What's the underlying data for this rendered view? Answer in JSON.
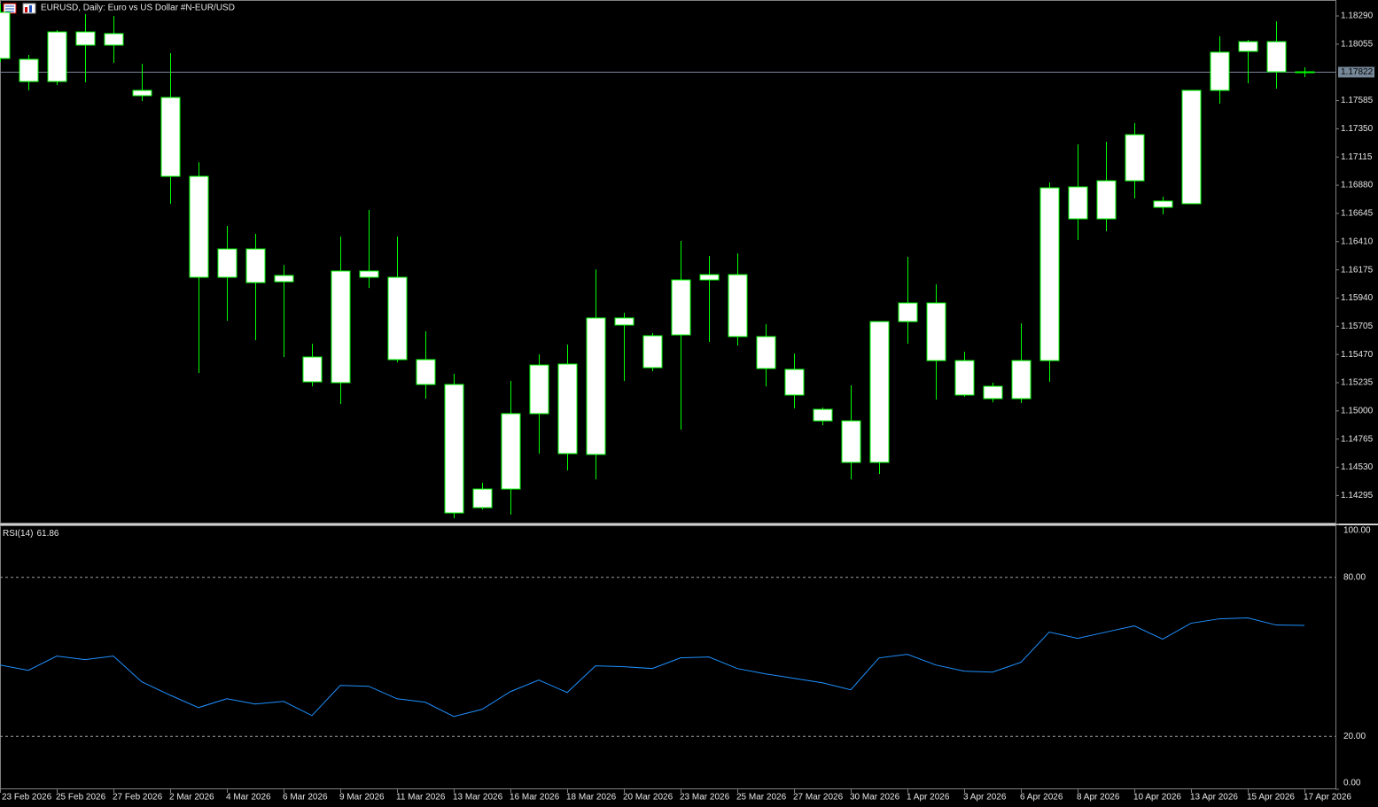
{
  "chart_data": [
    {
      "type": "candlestick",
      "title": "EURUSD, Daily:  Euro vs US Dollar #N-EUR/USD",
      "categories": [
        "23 Feb 2026",
        null,
        "25 Feb 2026",
        null,
        "27 Feb 2026",
        null,
        "2 Mar 2026",
        null,
        "4 Mar 2026",
        null,
        "6 Mar 2026",
        null,
        "9 Mar 2026",
        null,
        "11 Mar 2026",
        null,
        "13 Mar 2026",
        null,
        "16 Mar 2026",
        null,
        "18 Mar 2026",
        null,
        "20 Mar 2026",
        null,
        "23 Mar 2026",
        null,
        "25 Mar 2026",
        null,
        "27 Mar 2026",
        null,
        "30 Mar 2026",
        null,
        "1 Apr 2026",
        null,
        "3 Apr 2026",
        null,
        "6 Apr 2026",
        null,
        "8 Apr 2026",
        null,
        "10 Apr 2026",
        null,
        "13 Apr 2026",
        null,
        "15 Apr 2026",
        null,
        "17 Apr 2026"
      ],
      "open": [
        1.1832,
        1.17929,
        1.17744,
        1.18157,
        1.18047,
        1.1767,
        1.17611,
        1.16954,
        1.16113,
        1.16349,
        1.16076,
        1.15449,
        1.15235,
        1.16165,
        1.16113,
        1.15427,
        1.1522,
        1.14194,
        1.14349,
        1.14977,
        1.1539,
        1.14637,
        1.15774,
        1.15626,
        1.15633,
        1.16091,
        1.16135,
        1.15619,
        1.15346,
        1.15013,
        1.14917,
        1.14571,
        1.15744,
        1.15899,
        1.15419,
        1.15205,
        1.15102,
        1.15419,
        1.16866,
        1.166,
        1.16917,
        1.16748,
        1.16726,
        1.1767,
        1.17995,
        1.18076,
        1.17825
      ],
      "high": [
        1.18386,
        1.17965,
        1.18172,
        1.18305,
        1.1829,
        1.17892,
        1.1798,
        1.17072,
        1.16541,
        1.16475,
        1.16216,
        1.1556,
        1.16453,
        1.16674,
        1.16453,
        1.15663,
        1.15309,
        1.14401,
        1.1525,
        1.15471,
        1.15552,
        1.16179,
        1.15818,
        1.15648,
        1.16416,
        1.1629,
        1.16312,
        1.15722,
        1.15478,
        1.15028,
        1.15213,
        1.15744,
        1.16283,
        1.16054,
        1.15493,
        1.15235,
        1.15729,
        1.16903,
        1.1722,
        1.17242,
        1.17397,
        1.16785,
        1.1767,
        1.1812,
        1.18091,
        1.18246,
        1.17862
      ],
      "low": [
        1.17906,
        1.1767,
        1.17715,
        1.17737,
        1.17899,
        1.17582,
        1.16726,
        1.15316,
        1.15751,
        1.15589,
        1.15449,
        1.15205,
        1.15058,
        1.16024,
        1.15405,
        1.15102,
        1.14106,
        1.14179,
        1.14135,
        1.14644,
        1.14504,
        1.1443,
        1.1525,
        1.15331,
        1.14844,
        1.15574,
        1.15545,
        1.15205,
        1.15021,
        1.14881,
        1.1443,
        1.14475,
        1.1556,
        1.15095,
        1.15117,
        1.15072,
        1.15065,
        1.15242,
        1.16423,
        1.16497,
        1.1677,
        1.16637,
        1.16726,
        1.1756,
        1.17729,
        1.17685,
        1.17781
      ],
      "close": [
        1.17936,
        1.17744,
        1.18157,
        1.18047,
        1.18143,
        1.17626,
        1.16954,
        1.16113,
        1.16349,
        1.16069,
        1.16128,
        1.15242,
        1.16165,
        1.16113,
        1.15427,
        1.1522,
        1.1415,
        1.14349,
        1.14977,
        1.15382,
        1.14644,
        1.15774,
        1.15715,
        1.1536,
        1.16091,
        1.16135,
        1.15619,
        1.15353,
        1.15132,
        1.14917,
        1.14571,
        1.15744,
        1.15899,
        1.15419,
        1.15132,
        1.15102,
        1.15419,
        1.16858,
        1.166,
        1.16917,
        1.17301,
        1.16696,
        1.1767,
        1.17988,
        1.18076,
        1.17825,
        1.17822
      ],
      "color": "#00ff00",
      "body_color": "#ffffff",
      "ylim": [
        1.14069,
        1.18423
      ],
      "yticks": [
        {
          "value": 1.1829,
          "label": "1.18290"
        },
        {
          "value": 1.18055,
          "label": "1.18055"
        },
        {
          "value": 1.17585,
          "label": "1.17585"
        },
        {
          "value": 1.1735,
          "label": "1.17350"
        },
        {
          "value": 1.17115,
          "label": "1.17115"
        },
        {
          "value": 1.1688,
          "label": "1.16880"
        },
        {
          "value": 1.16645,
          "label": "1.16645"
        },
        {
          "value": 1.1641,
          "label": "1.16410"
        },
        {
          "value": 1.16175,
          "label": "1.16175"
        },
        {
          "value": 1.1594,
          "label": "1.15940"
        },
        {
          "value": 1.15705,
          "label": "1.15705"
        },
        {
          "value": 1.1547,
          "label": "1.15470"
        },
        {
          "value": 1.15235,
          "label": "1.15235"
        },
        {
          "value": 1.15,
          "label": "1.15000"
        },
        {
          "value": 1.14765,
          "label": "1.14765"
        },
        {
          "value": 1.1453,
          "label": "1.14530"
        },
        {
          "value": 1.14295,
          "label": "1.14295"
        }
      ],
      "current_price": 1.17822,
      "current_price_color": "#778899"
    },
    {
      "type": "line",
      "series": [
        {
          "name": "RSI(14)",
          "color": "#1e90ff",
          "values": [
            46.93,
            44.92,
            50.28,
            48.94,
            50.28,
            40.56,
            35.53,
            30.84,
            34.19,
            32.18,
            33.19,
            27.82,
            39.22,
            38.89,
            34.19,
            32.85,
            27.49,
            30.17,
            36.88,
            41.23,
            36.54,
            46.6,
            46.26,
            45.59,
            49.61,
            49.95,
            45.59,
            43.58,
            41.9,
            40.23,
            37.55,
            49.61,
            50.96,
            46.93,
            44.59,
            44.25,
            47.94,
            59.34,
            56.99,
            59.34,
            61.68,
            56.65,
            62.69,
            64.36,
            64.7,
            62.02,
            61.86
          ]
        }
      ],
      "ylim": [
        0,
        100
      ],
      "yticks": [
        {
          "value": 100,
          "label": "100.00"
        },
        {
          "value": 80,
          "label": "80.00"
        },
        {
          "value": 20,
          "label": "20.00"
        },
        {
          "value": 0,
          "label": "0.00"
        }
      ]
    }
  ]
}
